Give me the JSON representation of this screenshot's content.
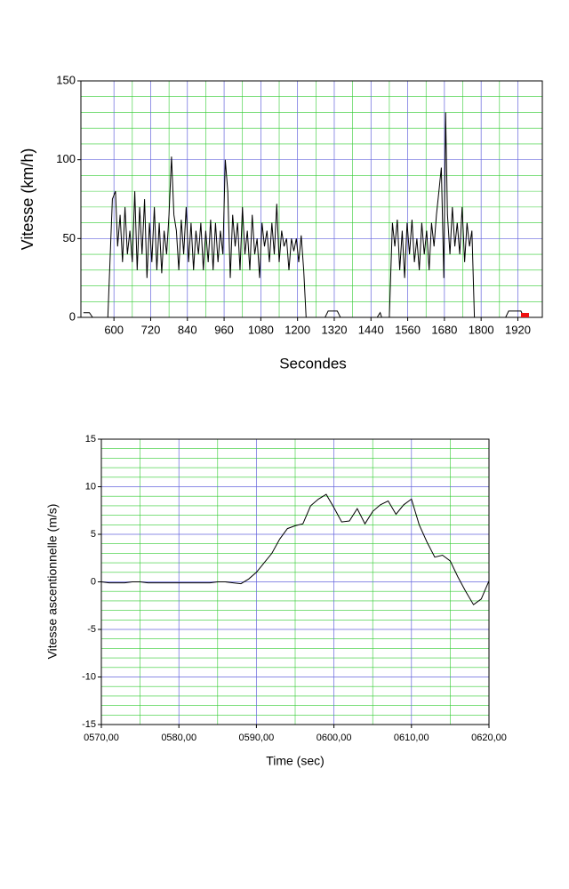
{
  "chart_data": [
    {
      "type": "line",
      "ylabel": "Vitesse (km/h)",
      "xlabel": "Secondes",
      "xlim": [
        492,
        2000
      ],
      "ylim": [
        0,
        150
      ],
      "xticks": [
        600,
        720,
        840,
        960,
        1080,
        1200,
        1320,
        1440,
        1560,
        1680,
        1800,
        1920
      ],
      "yticks": [
        0,
        50,
        100,
        150
      ],
      "grid": true,
      "minor_grid": true,
      "series": [
        {
          "color": "#000000",
          "x": [
            500,
            520,
            530,
            560,
            580,
            590,
            595,
            605,
            612,
            620,
            628,
            636,
            644,
            652,
            660,
            668,
            676,
            684,
            692,
            700,
            708,
            716,
            724,
            732,
            740,
            748,
            756,
            764,
            772,
            780,
            788,
            796,
            804,
            812,
            820,
            828,
            836,
            844,
            852,
            860,
            868,
            876,
            884,
            892,
            900,
            908,
            916,
            924,
            932,
            940,
            948,
            956,
            964,
            972,
            980,
            988,
            996,
            1004,
            1012,
            1020,
            1028,
            1036,
            1044,
            1052,
            1060,
            1068,
            1076,
            1084,
            1092,
            1100,
            1108,
            1116,
            1124,
            1132,
            1140,
            1148,
            1156,
            1164,
            1172,
            1180,
            1188,
            1196,
            1204,
            1212,
            1220,
            1228,
            1290,
            1300,
            1330,
            1340,
            1460,
            1470,
            1475,
            1500,
            1510,
            1518,
            1526,
            1534,
            1542,
            1550,
            1558,
            1566,
            1574,
            1582,
            1590,
            1598,
            1606,
            1614,
            1622,
            1630,
            1638,
            1646,
            1654,
            1662,
            1670,
            1678,
            1684,
            1690,
            1698,
            1706,
            1714,
            1722,
            1730,
            1738,
            1746,
            1754,
            1762,
            1770,
            1778,
            1880,
            1890,
            1930,
            1940
          ],
          "values": [
            3,
            3,
            0,
            0,
            0,
            50,
            75,
            80,
            45,
            65,
            35,
            70,
            40,
            55,
            35,
            80,
            30,
            70,
            40,
            75,
            25,
            60,
            35,
            70,
            30,
            60,
            28,
            55,
            40,
            65,
            102,
            65,
            55,
            30,
            62,
            40,
            70,
            35,
            60,
            30,
            55,
            40,
            60,
            30,
            55,
            35,
            62,
            30,
            60,
            35,
            55,
            40,
            100,
            80,
            25,
            65,
            45,
            60,
            30,
            70,
            40,
            55,
            30,
            65,
            40,
            50,
            25,
            60,
            45,
            55,
            35,
            60,
            40,
            72,
            35,
            55,
            45,
            50,
            30,
            50,
            42,
            50,
            35,
            52,
            30,
            0,
            0,
            4,
            4,
            0,
            0,
            3,
            0,
            0,
            60,
            45,
            62,
            30,
            55,
            25,
            60,
            40,
            62,
            35,
            50,
            30,
            60,
            40,
            55,
            30,
            60,
            45,
            65,
            80,
            95,
            25,
            130,
            65,
            40,
            70,
            45,
            60,
            40,
            70,
            35,
            60,
            45,
            55,
            0,
            0,
            4,
            4,
            0
          ]
        }
      ]
    },
    {
      "type": "line",
      "ylabel": "Vitesse ascentionnelle (m/s)",
      "xlabel": "Time (sec)",
      "xlim": [
        570,
        620
      ],
      "ylim": [
        -15,
        15
      ],
      "xticks": [
        {
          "value": 570,
          "label": "0570,00"
        },
        {
          "value": 580,
          "label": "0580,00"
        },
        {
          "value": 590,
          "label": "0590,00"
        },
        {
          "value": 600,
          "label": "0600,00"
        },
        {
          "value": 610,
          "label": "0610,00"
        },
        {
          "value": 620,
          "label": "0620,00"
        }
      ],
      "yticks": [
        -15,
        -10,
        -5,
        0,
        5,
        10,
        15
      ],
      "grid": true,
      "minor_grid": true,
      "series": [
        {
          "color": "#000000",
          "x": [
            570,
            571,
            572,
            573,
            574,
            575,
            576,
            577,
            578,
            579,
            580,
            581,
            582,
            583,
            584,
            585,
            586,
            587,
            588,
            589,
            590,
            591,
            592,
            593,
            594,
            595,
            596,
            597,
            598,
            599,
            600,
            601,
            602,
            603,
            604,
            605,
            606,
            607,
            608,
            609,
            610,
            611,
            612,
            613,
            614,
            615,
            616,
            617,
            618,
            619,
            620
          ],
          "values": [
            0,
            -0.1,
            -0.1,
            -0.1,
            0,
            0,
            -0.1,
            -0.1,
            -0.1,
            -0.1,
            -0.1,
            -0.1,
            -0.1,
            -0.1,
            -0.1,
            0,
            0,
            -0.1,
            -0.2,
            0.3,
            1,
            2,
            3,
            4.5,
            5.6,
            5.9,
            6.1,
            8,
            8.7,
            9.2,
            7.8,
            6.3,
            6.4,
            7.7,
            6.1,
            7.4,
            8.1,
            8.5,
            7.1,
            8.1,
            8.7,
            6,
            4.2,
            2.6,
            2.8,
            2.2,
            0.5,
            -1,
            -2.4,
            -1.8,
            0.1
          ]
        }
      ]
    }
  ]
}
